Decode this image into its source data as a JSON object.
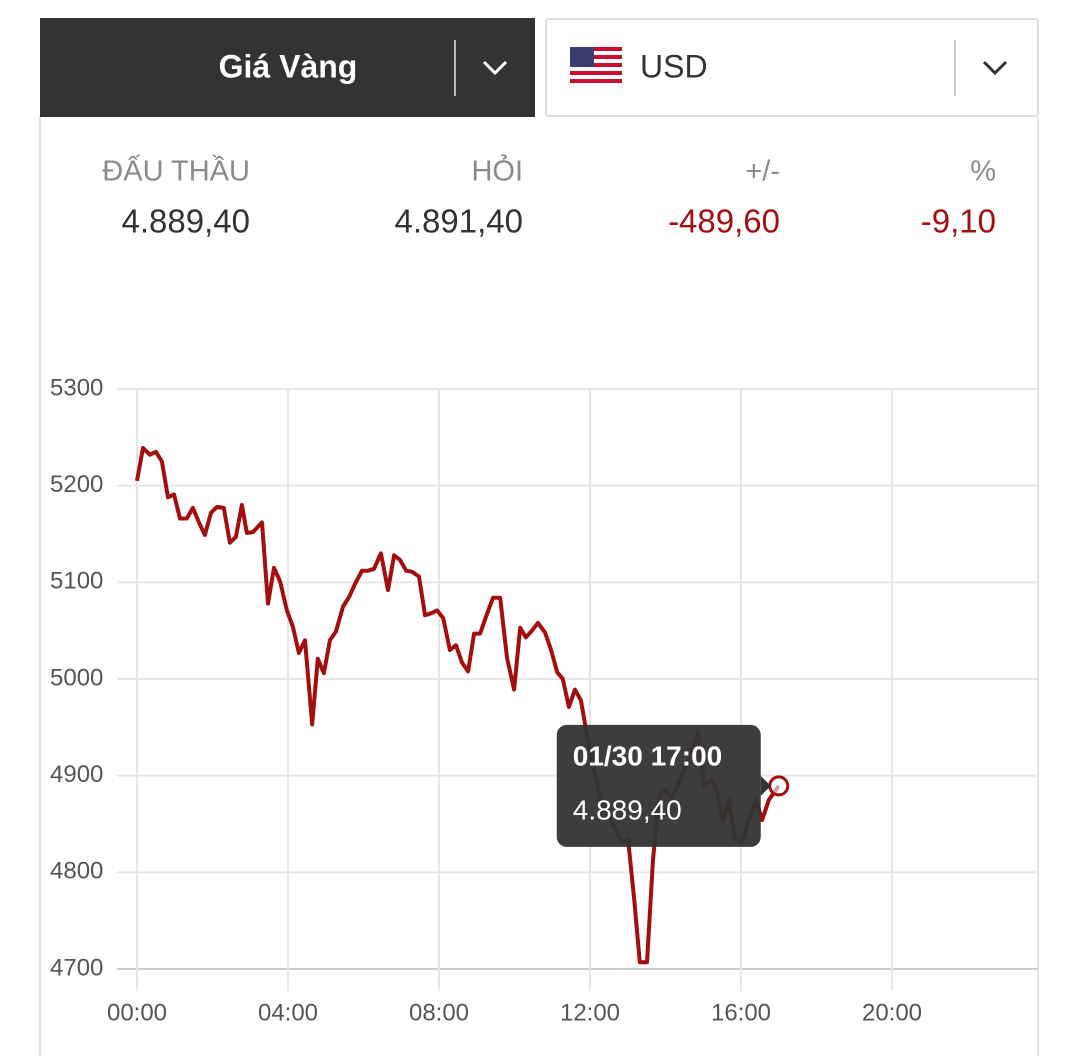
{
  "header": {
    "title": "Giá Vàng",
    "currency": "USD"
  },
  "quote": {
    "labels": [
      "ĐẤU THẦU",
      "HỎI",
      "+/-",
      "%"
    ],
    "values": [
      "4.889,40",
      "4.891,40",
      "-489,60",
      "-9,10"
    ]
  },
  "chart_data": {
    "type": "line",
    "color": "#a50e0e",
    "grid": true,
    "x": [
      0.0,
      0.16,
      0.34,
      0.5,
      0.66,
      0.82,
      0.98,
      1.14,
      1.32,
      1.48,
      1.64,
      1.8,
      1.96,
      2.12,
      2.3,
      2.46,
      2.62,
      2.78,
      2.91,
      3.07,
      3.31,
      3.47,
      3.63,
      3.79,
      3.97,
      4.13,
      4.29,
      4.45,
      4.64,
      4.79,
      4.95,
      5.11,
      5.27,
      5.46,
      5.62,
      5.77,
      5.96,
      6.12,
      6.28,
      6.46,
      6.65,
      6.81,
      6.97,
      7.13,
      7.28,
      7.47,
      7.63,
      7.79,
      7.95,
      8.11,
      8.29,
      8.45,
      8.61,
      8.77,
      8.93,
      9.09,
      9.27,
      9.43,
      9.62,
      9.8,
      9.99,
      10.15,
      10.3,
      10.46,
      10.62,
      10.81,
      10.97,
      11.13,
      11.28,
      11.44,
      11.6,
      11.76,
      11.92,
      12.11,
      12.29,
      12.48,
      12.66,
      12.82,
      13.01,
      13.17,
      13.32,
      13.51,
      13.67,
      13.83,
      14.01,
      14.17,
      14.33,
      14.52,
      14.7,
      14.86,
      15.02,
      15.21,
      15.36,
      15.52,
      15.68,
      15.84,
      16.03,
      16.21,
      16.4,
      16.56,
      16.74,
      17.0
    ],
    "values": [
      5205,
      5239,
      5232,
      5235,
      5225,
      5188,
      5191,
      5166,
      5166,
      5177,
      5162,
      5149,
      5172,
      5178,
      5177,
      5141,
      5147,
      5180,
      5151,
      5152,
      5162,
      5078,
      5115,
      5101,
      5071,
      5054,
      5027,
      5040,
      4953,
      5021,
      5006,
      5040,
      5049,
      5075,
      5085,
      5098,
      5112,
      5112,
      5114,
      5130,
      5092,
      5128,
      5123,
      5112,
      5111,
      5106,
      5066,
      5068,
      5071,
      5063,
      5030,
      5035,
      5017,
      5008,
      5047,
      5047,
      5067,
      5084,
      5084,
      5022,
      4989,
      5053,
      5043,
      5050,
      5058,
      5048,
      5030,
      5007,
      5000,
      4971,
      4989,
      4978,
      4942,
      4906,
      4875,
      4859,
      4846,
      4832,
      4834,
      4772,
      4707,
      4707,
      4813,
      4880,
      4885,
      4877,
      4890,
      4908,
      4927,
      4945,
      4890,
      4896,
      4885,
      4852,
      4875,
      4834,
      4832,
      4854,
      4875,
      4854,
      4875,
      4889.4
    ],
    "xlim": [
      0,
      24
    ],
    "xticks": [
      {
        "value": 0,
        "label": "00:00"
      },
      {
        "value": 4,
        "label": "04:00"
      },
      {
        "value": 8,
        "label": "08:00"
      },
      {
        "value": 12,
        "label": "12:00"
      },
      {
        "value": 16,
        "label": "16:00"
      },
      {
        "value": 20,
        "label": "20:00"
      }
    ],
    "ylim": [
      4700,
      5300
    ],
    "yticks": [
      4700,
      4800,
      4900,
      5000,
      5100,
      5200,
      5300
    ],
    "tooltip": {
      "title": "01/30 17:00",
      "value": "4.889,40"
    }
  }
}
